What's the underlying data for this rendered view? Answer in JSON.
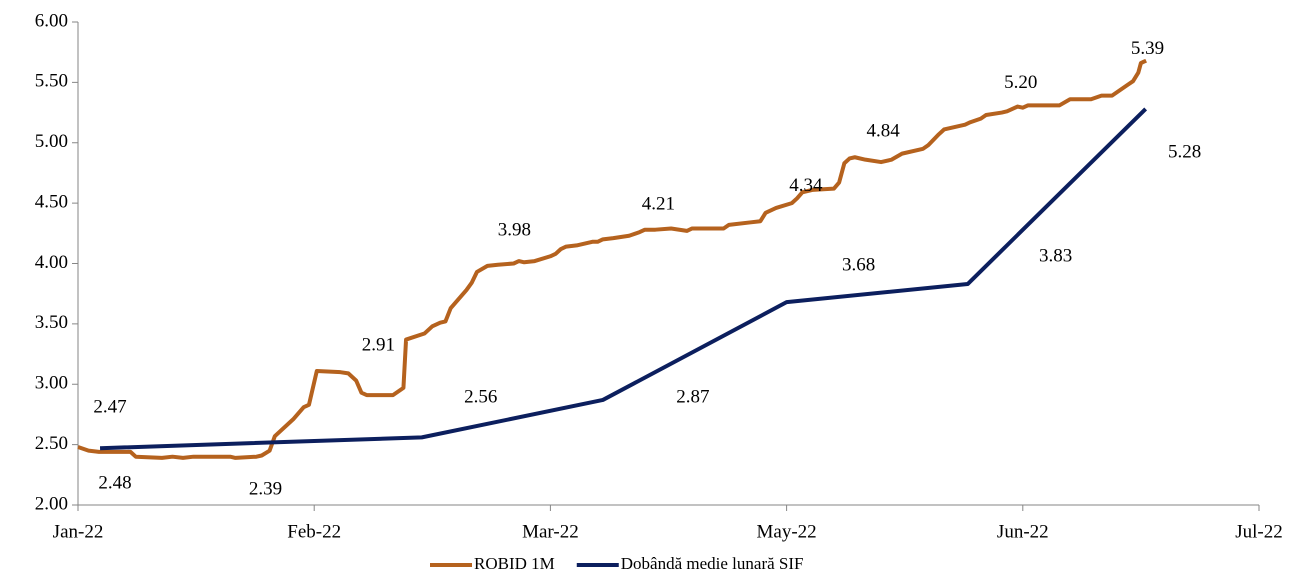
{
  "chart_data": {
    "type": "line",
    "xlim": [
      0,
      225
    ],
    "xticks": [
      {
        "value": 0,
        "label": "Jan-22"
      },
      {
        "value": 45,
        "label": "Feb-22"
      },
      {
        "value": 90,
        "label": "Mar-22"
      },
      {
        "value": 135,
        "label": "May-22"
      },
      {
        "value": 180,
        "label": "Jun-22"
      },
      {
        "value": 225,
        "label": "Jul-22"
      }
    ],
    "ylim": [
      2,
      6
    ],
    "yticks": [
      {
        "value": 2,
        "label": "2.00"
      },
      {
        "value": 2.5,
        "label": "2.50"
      },
      {
        "value": 3,
        "label": "3.00"
      },
      {
        "value": 3.5,
        "label": "3.50"
      },
      {
        "value": 4,
        "label": "4.00"
      },
      {
        "value": 4.5,
        "label": "4.50"
      },
      {
        "value": 5,
        "label": "5.00"
      },
      {
        "value": 5.5,
        "label": "5.50"
      },
      {
        "value": 6,
        "label": "6.00"
      }
    ],
    "legend": "bottom",
    "series": [
      {
        "name": "ROBID 1M",
        "color": "#b5621e",
        "x": [
          0,
          2,
          4,
          10,
          11,
          16,
          18,
          20,
          22,
          29,
          30,
          34,
          35,
          36.5,
          37.5,
          41,
          43,
          44,
          45.5,
          50,
          51.5,
          53,
          54,
          55,
          58,
          60,
          62,
          62.5,
          66,
          67.5,
          69,
          70,
          71,
          74,
          75,
          76,
          78,
          80,
          83,
          84,
          85,
          87,
          90,
          91,
          92,
          93,
          95,
          98,
          99,
          100,
          102,
          105,
          107,
          108,
          110,
          113,
          116,
          117,
          123,
          124,
          128,
          130,
          131,
          133,
          136,
          137,
          138,
          140,
          144,
          145,
          146,
          147,
          148,
          150,
          153,
          155,
          157,
          161,
          162,
          164,
          165,
          167,
          169,
          170,
          172,
          173,
          176,
          177,
          179,
          180,
          181,
          187,
          189,
          193,
          195,
          197,
          200,
          201,
          202,
          202.5,
          203.5
        ],
        "values": [
          2.48,
          2.45,
          2.44,
          2.44,
          2.4,
          2.39,
          2.4,
          2.39,
          2.4,
          2.4,
          2.39,
          2.4,
          2.41,
          2.45,
          2.57,
          2.71,
          2.81,
          2.83,
          3.11,
          3.1,
          3.09,
          3.03,
          2.93,
          2.91,
          2.91,
          2.91,
          2.97,
          3.37,
          3.42,
          3.48,
          3.51,
          3.52,
          3.63,
          3.78,
          3.84,
          3.93,
          3.98,
          3.99,
          4.0,
          4.02,
          4.01,
          4.02,
          4.06,
          4.08,
          4.12,
          4.14,
          4.15,
          4.18,
          4.18,
          4.2,
          4.21,
          4.23,
          4.26,
          4.28,
          4.28,
          4.29,
          4.27,
          4.29,
          4.29,
          4.32,
          4.34,
          4.35,
          4.42,
          4.46,
          4.5,
          4.54,
          4.59,
          4.61,
          4.62,
          4.67,
          4.83,
          4.87,
          4.88,
          4.86,
          4.84,
          4.86,
          4.91,
          4.95,
          4.98,
          5.07,
          5.11,
          5.13,
          5.15,
          5.17,
          5.2,
          5.23,
          5.25,
          5.26,
          5.3,
          5.29,
          5.31,
          5.31,
          5.36,
          5.36,
          5.39,
          5.39,
          5.48,
          5.51,
          5.58,
          5.66,
          5.68
        ],
        "value_labels": [
          "2.48",
          null,
          null,
          null,
          null,
          null,
          null,
          null,
          null,
          null,
          "2.39",
          null,
          null,
          null,
          null,
          null,
          null,
          null,
          null,
          null,
          null,
          null,
          null,
          null,
          "2.91",
          null,
          null,
          null,
          null,
          null,
          null,
          null,
          null,
          null,
          null,
          null,
          "3.98",
          null,
          null,
          null,
          null,
          null,
          null,
          null,
          null,
          null,
          null,
          null,
          null,
          null,
          "4.21",
          null,
          null,
          null,
          null,
          null,
          null,
          null,
          null,
          null,
          "4.34",
          null,
          null,
          null,
          null,
          null,
          null,
          null,
          null,
          null,
          null,
          null,
          null,
          null,
          "4.84",
          null,
          null,
          null,
          null,
          null,
          null,
          null,
          null,
          null,
          "5.20",
          null,
          null,
          null,
          null,
          null,
          null,
          null,
          null,
          null,
          "5.39",
          null,
          null,
          null,
          null,
          null,
          null
        ]
      },
      {
        "name": "Dobândă medie lunară SIF",
        "color": "#0c1f5e",
        "x": [
          4.2,
          65.5,
          100,
          135,
          169.5,
          203.4
        ],
        "values": [
          2.47,
          2.56,
          2.87,
          3.68,
          3.83,
          5.28
        ],
        "value_labels": [
          "2.47",
          "2.56",
          "2.87",
          "3.68",
          "3.83",
          "5.28"
        ]
      }
    ]
  }
}
